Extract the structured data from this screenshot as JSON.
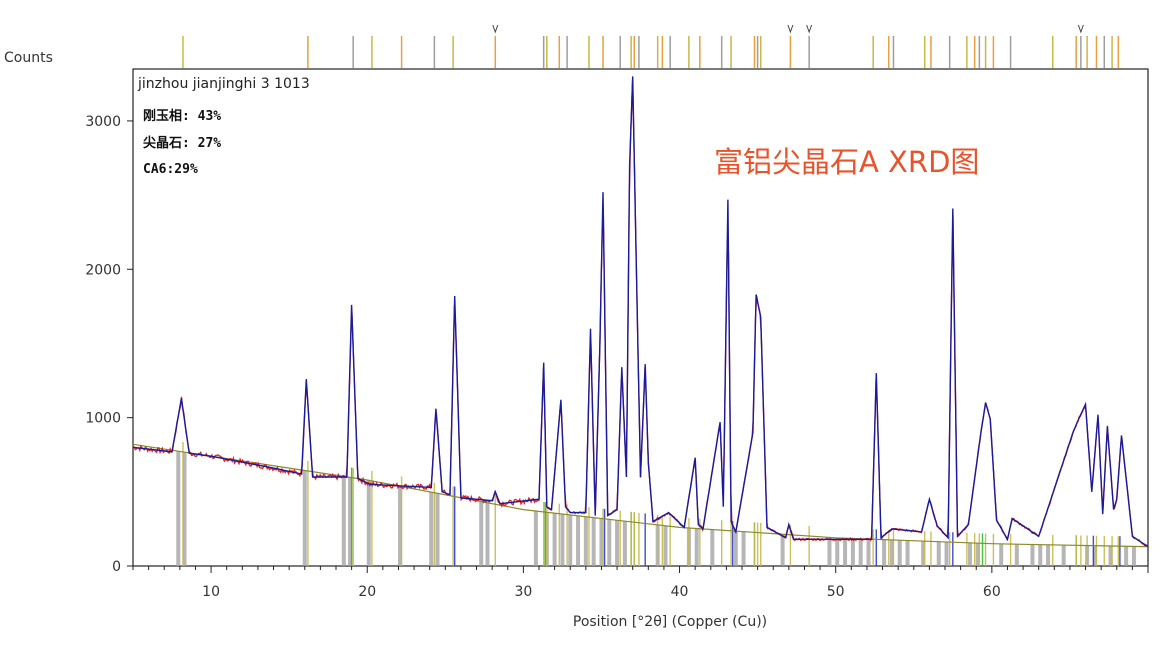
{
  "chart_data": {
    "type": "line",
    "title": "富铝尖晶石A XRD图",
    "sample_label": "jinzhou jianjinghi 3  1013",
    "ylabel": "Counts",
    "xlabel": "Position [°2θ] (Copper (Cu))",
    "xlim": [
      5,
      70
    ],
    "ylim": [
      0,
      3350
    ],
    "x_ticks": [
      10,
      20,
      30,
      40,
      50,
      60
    ],
    "y_ticks": [
      0,
      1000,
      2000,
      3000
    ],
    "phases": [
      {
        "label": "刚玉相: 43%"
      },
      {
        "label": "尖晶石: 27%"
      },
      {
        "label": "CA6:29%"
      }
    ],
    "background_line": {
      "x": [
        5,
        10,
        20,
        30,
        40,
        50,
        60,
        70
      ],
      "y": [
        820,
        740,
        580,
        380,
        260,
        190,
        150,
        130
      ]
    },
    "series": [
      {
        "x": [
          5,
          7.5,
          8.1,
          8.6,
          10,
          14,
          15.8,
          16.1,
          16.5,
          18.7,
          19.0,
          19.4,
          20.2,
          24.1,
          24.4,
          24.8,
          25.3,
          25.6,
          26.0,
          28.0,
          28.2,
          28.5,
          31.0,
          31.3,
          31.5,
          31.8,
          32.4,
          32.7,
          33.0,
          34.0,
          34.3,
          34.6,
          34.9,
          35.1,
          35.4,
          36.0,
          36.3,
          36.6,
          36.8,
          37.0,
          37.2,
          37.5,
          37.8,
          38.0,
          38.3,
          39.3,
          40.3,
          41.0,
          41.2,
          41.5,
          42.6,
          42.8,
          43.1,
          43.3,
          43.6,
          44.7,
          44.9,
          45.2,
          45.6,
          46.8,
          47.0,
          47.3,
          52.3,
          52.6,
          52.9,
          53.6,
          55.5,
          56.0,
          56.5,
          57.2,
          57.5,
          57.8,
          58.5,
          59.3,
          59.6,
          59.9,
          60.3,
          61.0,
          61.3,
          63.0,
          65.2,
          65.6,
          66.0,
          66.4,
          66.8,
          67.1,
          67.4,
          67.8,
          68.0,
          68.3,
          69.0,
          70
        ],
        "y": [
          800,
          770,
          1130,
          760,
          740,
          660,
          620,
          1260,
          600,
          600,
          1760,
          590,
          550,
          530,
          1060,
          500,
          480,
          1820,
          460,
          440,
          500,
          420,
          450,
          1370,
          400,
          380,
          1120,
          400,
          360,
          360,
          1600,
          340,
          1500,
          2520,
          340,
          380,
          1340,
          600,
          2700,
          3300,
          2200,
          600,
          1360,
          700,
          300,
          360,
          260,
          730,
          280,
          250,
          970,
          400,
          2470,
          300,
          230,
          900,
          1830,
          1680,
          260,
          190,
          280,
          180,
          180,
          1300,
          190,
          250,
          230,
          450,
          270,
          190,
          2410,
          200,
          280,
          900,
          1100,
          990,
          310,
          180,
          320,
          200,
          900,
          1000,
          1090,
          500,
          1020,
          350,
          940,
          380,
          450,
          880,
          200,
          130
        ]
      }
    ],
    "reference_sticks": [
      {
        "color": "#9e9e9e",
        "x": [
          7.9,
          8.3,
          16.0,
          18.5,
          18.9,
          20.1,
          22.1,
          24.1,
          24.5,
          27.3,
          27.7,
          30.8,
          31.5,
          32.0,
          32.5,
          33.0,
          33.5,
          34.0,
          34.5,
          35.0,
          35.5,
          36.0,
          36.5,
          38.6,
          39.1,
          40.6,
          41.1,
          42.1,
          43.6,
          44.1,
          46.6,
          49.6,
          50.1,
          50.6,
          51.1,
          51.6,
          52.1,
          53.1,
          53.6,
          54.1,
          54.6,
          55.6,
          56.6,
          57.1,
          58.6,
          59.1,
          60.6,
          61.6,
          62.6,
          63.1,
          63.6,
          64.6,
          66.1,
          66.6,
          67.6,
          68.6,
          69.1
        ]
      },
      {
        "color": "#2b3bd0",
        "x": [
          25.6,
          35.2,
          37.8,
          43.4,
          52.6,
          57.5,
          66.5,
          68.2
        ]
      },
      {
        "color": "#2ebd2e",
        "x": [
          19.0,
          31.4,
          36.9,
          37.1,
          44.8,
          59.4,
          65.4
        ]
      },
      {
        "color": "#c8b84a",
        "x": [
          8.2,
          16.2,
          19.1,
          20.3,
          22.2,
          24.3,
          25.5,
          28.2,
          31.3,
          31.5,
          32.3,
          32.8,
          34.2,
          35.1,
          36.2,
          36.9,
          37.1,
          37.4,
          38.6,
          38.9,
          39.4,
          40.6,
          41.3,
          42.7,
          43.3,
          44.8,
          45.0,
          45.2,
          47.1,
          48.3,
          52.4,
          53.4,
          53.7,
          55.7,
          56.1,
          57.3,
          58.4,
          58.9,
          59.2,
          59.6,
          60.1,
          61.2,
          63.9,
          65.4,
          65.7,
          66.1,
          66.7,
          67.2,
          67.7,
          68.1
        ]
      }
    ],
    "top_markers": [
      28.2,
      47.1,
      48.3,
      65.7
    ],
    "colors": {
      "observed": "#e0201c",
      "calculated": "#1a1a9c",
      "background": "#8a8a2a",
      "title": "#e8532b"
    }
  }
}
